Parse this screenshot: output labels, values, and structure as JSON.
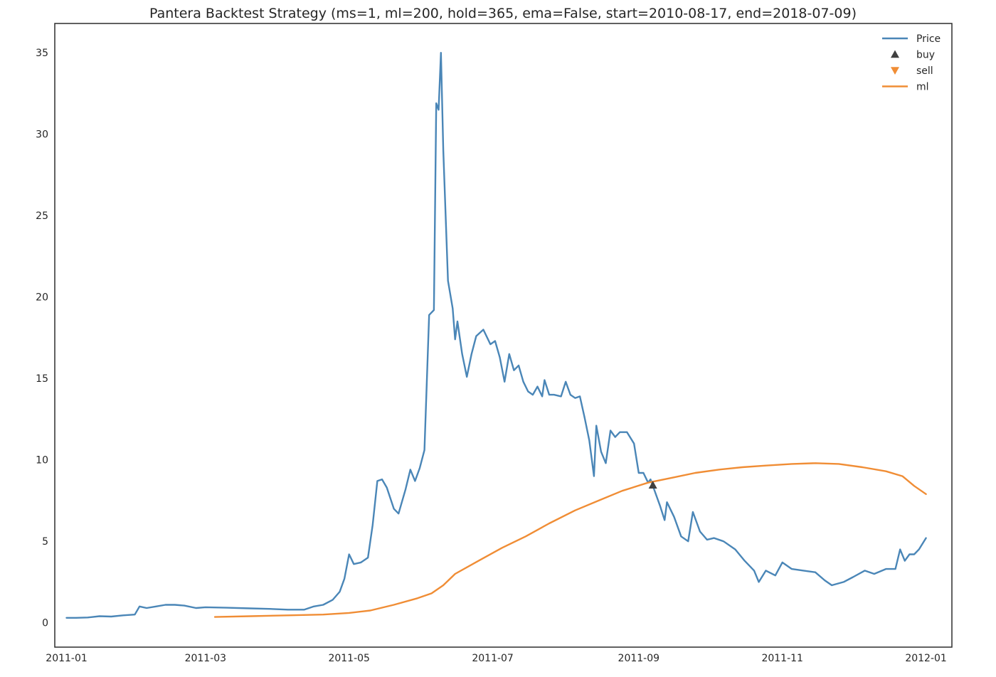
{
  "chart_data": {
    "type": "line",
    "title": "Pantera Backtest Strategy (ms=1, ml=200, hold=365, ema=False, start=2010-08-17, end=2018-07-09)",
    "xlabel": "",
    "ylabel": "",
    "xlim": [
      "2010-12-27",
      "2012-01-12"
    ],
    "ylim": [
      -1.5,
      36.8
    ],
    "grid": false,
    "legend_position": "top-right",
    "x_ticks": [
      "2011-01",
      "2011-03",
      "2011-05",
      "2011-07",
      "2011-09",
      "2011-11",
      "2012-01"
    ],
    "y_ticks": [
      0,
      5,
      10,
      15,
      20,
      25,
      30,
      35
    ],
    "colors": {
      "price": "#4a86b7",
      "buy": "#404040",
      "sell": "#f08d35",
      "ml": "#f08d35"
    },
    "legend": [
      {
        "key": "price",
        "label": "Price",
        "kind": "line"
      },
      {
        "key": "buy",
        "label": "buy",
        "kind": "up-triangle"
      },
      {
        "key": "sell",
        "label": "sell",
        "kind": "down-triangle"
      },
      {
        "key": "ml",
        "label": "ml",
        "kind": "line"
      }
    ],
    "series": [
      {
        "name": "Price",
        "key": "price",
        "points": [
          [
            "2011-01-01",
            0.3
          ],
          [
            "2011-01-05",
            0.3
          ],
          [
            "2011-01-10",
            0.32
          ],
          [
            "2011-01-15",
            0.4
          ],
          [
            "2011-01-20",
            0.38
          ],
          [
            "2011-01-25",
            0.45
          ],
          [
            "2011-01-30",
            0.5
          ],
          [
            "2011-02-01",
            1.0
          ],
          [
            "2011-02-04",
            0.9
          ],
          [
            "2011-02-08",
            1.0
          ],
          [
            "2011-02-12",
            1.1
          ],
          [
            "2011-02-16",
            1.1
          ],
          [
            "2011-02-20",
            1.05
          ],
          [
            "2011-02-25",
            0.9
          ],
          [
            "2011-03-01",
            0.95
          ],
          [
            "2011-03-10",
            0.92
          ],
          [
            "2011-03-20",
            0.88
          ],
          [
            "2011-03-28",
            0.85
          ],
          [
            "2011-04-05",
            0.8
          ],
          [
            "2011-04-12",
            0.8
          ],
          [
            "2011-04-16",
            1.0
          ],
          [
            "2011-04-20",
            1.1
          ],
          [
            "2011-04-24",
            1.4
          ],
          [
            "2011-04-27",
            1.9
          ],
          [
            "2011-04-29",
            2.7
          ],
          [
            "2011-05-01",
            4.2
          ],
          [
            "2011-05-03",
            3.6
          ],
          [
            "2011-05-06",
            3.7
          ],
          [
            "2011-05-09",
            4.0
          ],
          [
            "2011-05-11",
            6.0
          ],
          [
            "2011-05-13",
            8.7
          ],
          [
            "2011-05-15",
            8.8
          ],
          [
            "2011-05-17",
            8.3
          ],
          [
            "2011-05-20",
            7.0
          ],
          [
            "2011-05-22",
            6.7
          ],
          [
            "2011-05-25",
            8.2
          ],
          [
            "2011-05-27",
            9.4
          ],
          [
            "2011-05-29",
            8.7
          ],
          [
            "2011-05-31",
            9.5
          ],
          [
            "2011-06-02",
            10.6
          ],
          [
            "2011-06-04",
            18.9
          ],
          [
            "2011-06-06",
            19.2
          ],
          [
            "2011-06-07",
            31.9
          ],
          [
            "2011-06-08",
            31.5
          ],
          [
            "2011-06-09",
            35.0
          ],
          [
            "2011-06-10",
            29.0
          ],
          [
            "2011-06-11",
            25.0
          ],
          [
            "2011-06-12",
            21.0
          ],
          [
            "2011-06-14",
            19.3
          ],
          [
            "2011-06-15",
            17.4
          ],
          [
            "2011-06-16",
            18.5
          ],
          [
            "2011-06-17",
            17.5
          ],
          [
            "2011-06-18",
            16.5
          ],
          [
            "2011-06-20",
            15.1
          ],
          [
            "2011-06-22",
            16.5
          ],
          [
            "2011-06-24",
            17.6
          ],
          [
            "2011-06-27",
            18.0
          ],
          [
            "2011-06-30",
            17.1
          ],
          [
            "2011-07-02",
            17.3
          ],
          [
            "2011-07-04",
            16.3
          ],
          [
            "2011-07-06",
            14.8
          ],
          [
            "2011-07-08",
            16.5
          ],
          [
            "2011-07-10",
            15.5
          ],
          [
            "2011-07-12",
            15.8
          ],
          [
            "2011-07-14",
            14.8
          ],
          [
            "2011-07-16",
            14.2
          ],
          [
            "2011-07-18",
            14.0
          ],
          [
            "2011-07-20",
            14.5
          ],
          [
            "2011-07-22",
            13.9
          ],
          [
            "2011-07-23",
            14.9
          ],
          [
            "2011-07-25",
            14.0
          ],
          [
            "2011-07-27",
            14.0
          ],
          [
            "2011-07-30",
            13.9
          ],
          [
            "2011-08-01",
            14.8
          ],
          [
            "2011-08-03",
            14.0
          ],
          [
            "2011-08-05",
            13.8
          ],
          [
            "2011-08-07",
            13.9
          ],
          [
            "2011-08-09",
            12.6
          ],
          [
            "2011-08-11",
            11.2
          ],
          [
            "2011-08-13",
            9.0
          ],
          [
            "2011-08-14",
            12.1
          ],
          [
            "2011-08-16",
            10.5
          ],
          [
            "2011-08-18",
            9.8
          ],
          [
            "2011-08-20",
            11.8
          ],
          [
            "2011-08-22",
            11.4
          ],
          [
            "2011-08-24",
            11.7
          ],
          [
            "2011-08-27",
            11.7
          ],
          [
            "2011-08-30",
            11.0
          ],
          [
            "2011-09-01",
            9.2
          ],
          [
            "2011-09-03",
            9.2
          ],
          [
            "2011-09-05",
            8.6
          ],
          [
            "2011-09-06",
            8.8
          ],
          [
            "2011-09-08",
            8.0
          ],
          [
            "2011-09-10",
            7.2
          ],
          [
            "2011-09-12",
            6.3
          ],
          [
            "2011-09-13",
            7.4
          ],
          [
            "2011-09-16",
            6.5
          ],
          [
            "2011-09-19",
            5.3
          ],
          [
            "2011-09-22",
            5.0
          ],
          [
            "2011-09-24",
            6.8
          ],
          [
            "2011-09-27",
            5.6
          ],
          [
            "2011-09-30",
            5.1
          ],
          [
            "2011-10-03",
            5.2
          ],
          [
            "2011-10-07",
            5.0
          ],
          [
            "2011-10-12",
            4.5
          ],
          [
            "2011-10-16",
            3.8
          ],
          [
            "2011-10-20",
            3.2
          ],
          [
            "2011-10-22",
            2.5
          ],
          [
            "2011-10-25",
            3.2
          ],
          [
            "2011-10-29",
            2.9
          ],
          [
            "2011-11-01",
            3.7
          ],
          [
            "2011-11-05",
            3.3
          ],
          [
            "2011-11-10",
            3.2
          ],
          [
            "2011-11-15",
            3.1
          ],
          [
            "2011-11-19",
            2.6
          ],
          [
            "2011-11-22",
            2.3
          ],
          [
            "2011-11-27",
            2.5
          ],
          [
            "2011-12-01",
            2.8
          ],
          [
            "2011-12-06",
            3.2
          ],
          [
            "2011-12-10",
            3.0
          ],
          [
            "2011-12-15",
            3.3
          ],
          [
            "2011-12-19",
            3.3
          ],
          [
            "2011-12-21",
            4.5
          ],
          [
            "2011-12-23",
            3.8
          ],
          [
            "2011-12-25",
            4.2
          ],
          [
            "2011-12-27",
            4.2
          ],
          [
            "2011-12-29",
            4.5
          ],
          [
            "2012-01-01",
            5.2
          ]
        ]
      },
      {
        "name": "ml",
        "key": "ml",
        "points": [
          [
            "2011-03-05",
            0.35
          ],
          [
            "2011-03-20",
            0.4
          ],
          [
            "2011-04-05",
            0.45
          ],
          [
            "2011-04-20",
            0.5
          ],
          [
            "2011-05-01",
            0.6
          ],
          [
            "2011-05-10",
            0.75
          ],
          [
            "2011-05-20",
            1.1
          ],
          [
            "2011-05-30",
            1.5
          ],
          [
            "2011-06-05",
            1.8
          ],
          [
            "2011-06-10",
            2.3
          ],
          [
            "2011-06-15",
            3.0
          ],
          [
            "2011-06-25",
            3.8
          ],
          [
            "2011-07-05",
            4.6
          ],
          [
            "2011-07-15",
            5.3
          ],
          [
            "2011-07-25",
            6.1
          ],
          [
            "2011-08-05",
            6.9
          ],
          [
            "2011-08-15",
            7.5
          ],
          [
            "2011-08-25",
            8.1
          ],
          [
            "2011-09-05",
            8.6
          ],
          [
            "2011-09-15",
            8.9
          ],
          [
            "2011-09-25",
            9.2
          ],
          [
            "2011-10-05",
            9.4
          ],
          [
            "2011-10-15",
            9.55
          ],
          [
            "2011-10-25",
            9.65
          ],
          [
            "2011-11-05",
            9.75
          ],
          [
            "2011-11-15",
            9.8
          ],
          [
            "2011-11-25",
            9.75
          ],
          [
            "2011-12-05",
            9.55
          ],
          [
            "2011-12-15",
            9.3
          ],
          [
            "2011-12-22",
            9.0
          ],
          [
            "2011-12-27",
            8.4
          ],
          [
            "2012-01-01",
            7.9
          ]
        ]
      }
    ],
    "markers": {
      "buy": [
        {
          "x": "2011-09-07",
          "y": 8.45
        }
      ],
      "sell": []
    }
  }
}
